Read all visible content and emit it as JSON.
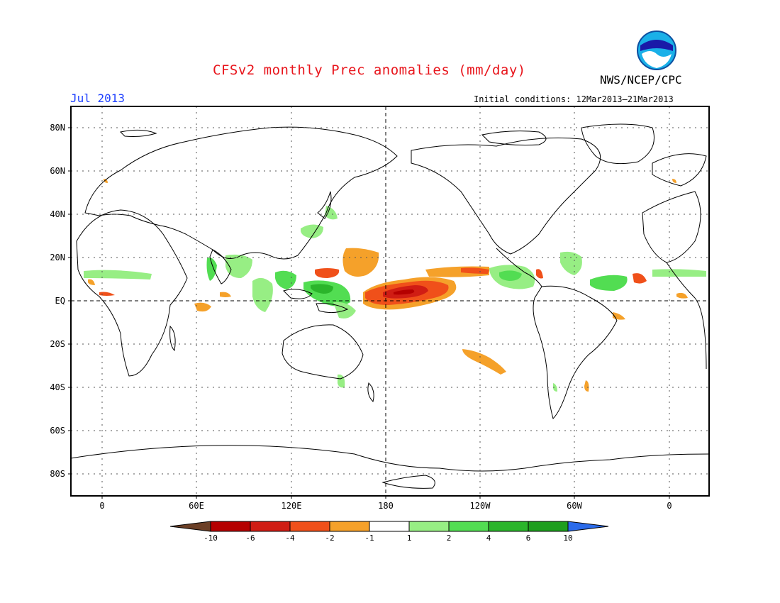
{
  "title": "CFSv2 monthly Prec anomalies (mm/day)",
  "agency": "NWS/NCEP/CPC",
  "month": "Jul 2013",
  "initial_conditions": "Initial conditions: 12Mar2013–21Mar2013",
  "logo_text": "NOAA",
  "lat_labels": [
    "80N",
    "60N",
    "40N",
    "20N",
    "EQ",
    "20S",
    "40S",
    "60S",
    "80S"
  ],
  "lon_labels": [
    "0",
    "60E",
    "120E",
    "180",
    "120W",
    "60W",
    "0"
  ],
  "colorbar": {
    "labels": [
      "-10",
      "-6",
      "-4",
      "-2",
      "-1",
      "1",
      "2",
      "4",
      "6",
      "10"
    ],
    "colors": [
      "#6b3f26",
      "#b50000",
      "#d01d14",
      "#f0501a",
      "#f5a12a",
      "#ffffff",
      "#97ee84",
      "#52dd52",
      "#2bb52b",
      "#1e9e1e",
      "#2b6bea"
    ]
  },
  "colors": {
    "title": "#e8141b",
    "month": "#1e40ff",
    "dry_strong": "#d01d14",
    "dry_moderate": "#f0501a",
    "dry_weak": "#f5a12a",
    "wet_weak": "#97ee84",
    "wet_moderate": "#52dd52",
    "wet_strong": "#2bb52b"
  }
}
